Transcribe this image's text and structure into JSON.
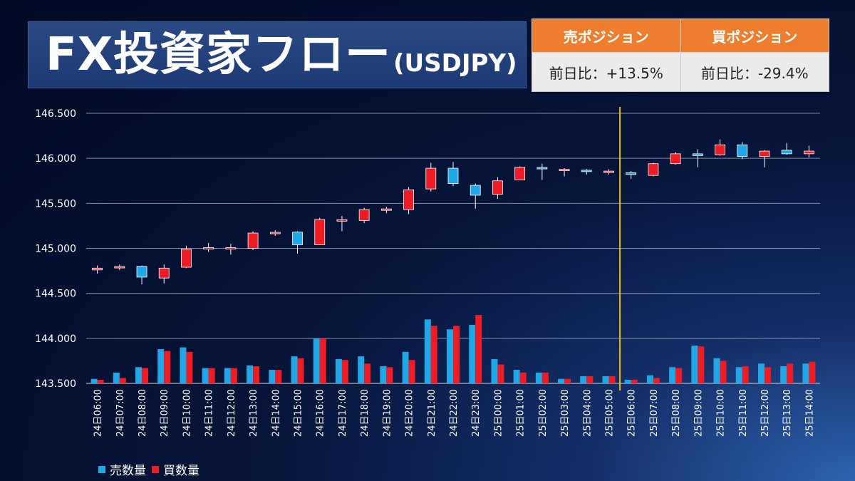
{
  "header": {
    "title": "FX投資家フロー",
    "pair": "(USDJPY)"
  },
  "positions": {
    "sell_label": "売ポジション",
    "buy_label": "買ポジション",
    "sell_change": "前日比：+13.5%",
    "buy_change": "前日比：-29.4%"
  },
  "legend": {
    "sell_volume": "売数量",
    "buy_volume": "買数量"
  },
  "colors": {
    "sell": "#1fa7e8",
    "buy": "#ee1c25",
    "header_orange": "#ee7d2e",
    "marker_line": "#f5b800"
  },
  "chart_data": {
    "type": "candlestick+bar",
    "title": "",
    "xlabel": "",
    "ylabel": "",
    "ylim": [
      143.5,
      146.5
    ],
    "yticks": [
      "146.500",
      "146.000",
      "145.500",
      "145.000",
      "144.500",
      "144.000",
      "143.500"
    ],
    "ytick_values": [
      146.5,
      146.0,
      145.5,
      145.0,
      144.5,
      144.0,
      143.5
    ],
    "grid": true,
    "legend_position": "bottom-left",
    "vertical_marker_between": [
      "25日05:00",
      "25日06:00"
    ],
    "categories": [
      "24日06:00",
      "24日07:00",
      "24日08:00",
      "24日09:00",
      "24日10:00",
      "24日11:00",
      "24日12:00",
      "24日13:00",
      "24日14:00",
      "24日15:00",
      "24日16:00",
      "24日17:00",
      "24日18:00",
      "24日19:00",
      "24日20:00",
      "24日21:00",
      "24日22:00",
      "24日23:00",
      "25日00:00",
      "25日01:00",
      "25日02:00",
      "25日03:00",
      "25日04:00",
      "25日05:00",
      "25日06:00",
      "25日07:00",
      "25日08:00",
      "25日09:00",
      "25日10:00",
      "25日11:00",
      "25日12:00",
      "25日13:00",
      "25日14:00"
    ],
    "candles": [
      {
        "open": 144.76,
        "close": 144.78,
        "high": 144.81,
        "low": 144.72
      },
      {
        "open": 144.79,
        "close": 144.79,
        "high": 144.82,
        "low": 144.76
      },
      {
        "open": 144.8,
        "close": 144.68,
        "high": 144.81,
        "low": 144.6
      },
      {
        "open": 144.67,
        "close": 144.78,
        "high": 144.82,
        "low": 144.61
      },
      {
        "open": 144.79,
        "close": 144.99,
        "high": 145.03,
        "low": 144.78
      },
      {
        "open": 144.99,
        "close": 145.0,
        "high": 145.06,
        "low": 144.96
      },
      {
        "open": 144.99,
        "close": 145.0,
        "high": 145.05,
        "low": 144.93
      },
      {
        "open": 145.0,
        "close": 145.17,
        "high": 145.19,
        "low": 144.98
      },
      {
        "open": 145.17,
        "close": 145.17,
        "high": 145.2,
        "low": 145.14
      },
      {
        "open": 145.18,
        "close": 145.04,
        "high": 145.19,
        "low": 144.94
      },
      {
        "open": 145.04,
        "close": 145.32,
        "high": 145.34,
        "low": 145.04
      },
      {
        "open": 145.3,
        "close": 145.31,
        "high": 145.36,
        "low": 145.19
      },
      {
        "open": 145.31,
        "close": 145.43,
        "high": 145.45,
        "low": 145.28
      },
      {
        "open": 145.42,
        "close": 145.43,
        "high": 145.46,
        "low": 145.39
      },
      {
        "open": 145.43,
        "close": 145.65,
        "high": 145.68,
        "low": 145.38
      },
      {
        "open": 145.66,
        "close": 145.89,
        "high": 145.95,
        "low": 145.63
      },
      {
        "open": 145.89,
        "close": 145.72,
        "high": 145.96,
        "low": 145.69
      },
      {
        "open": 145.7,
        "close": 145.59,
        "high": 145.72,
        "low": 145.44
      },
      {
        "open": 145.6,
        "close": 145.75,
        "high": 145.79,
        "low": 145.55
      },
      {
        "open": 145.76,
        "close": 145.9,
        "high": 145.91,
        "low": 145.76
      },
      {
        "open": 145.89,
        "close": 145.88,
        "high": 145.94,
        "low": 145.76
      },
      {
        "open": 145.87,
        "close": 145.87,
        "high": 145.89,
        "low": 145.8
      },
      {
        "open": 145.86,
        "close": 145.85,
        "high": 145.88,
        "low": 145.82
      },
      {
        "open": 145.85,
        "close": 145.85,
        "high": 145.88,
        "low": 145.82
      },
      {
        "open": 145.84,
        "close": 145.82,
        "high": 145.86,
        "low": 145.77
      },
      {
        "open": 145.81,
        "close": 145.94,
        "high": 145.95,
        "low": 145.8
      },
      {
        "open": 145.94,
        "close": 146.05,
        "high": 146.07,
        "low": 145.93
      },
      {
        "open": 146.05,
        "close": 146.03,
        "high": 146.1,
        "low": 145.9
      },
      {
        "open": 146.04,
        "close": 146.15,
        "high": 146.21,
        "low": 146.03
      },
      {
        "open": 146.15,
        "close": 146.02,
        "high": 146.18,
        "low": 145.99
      },
      {
        "open": 146.02,
        "close": 146.08,
        "high": 146.09,
        "low": 145.9
      },
      {
        "open": 146.09,
        "close": 146.05,
        "high": 146.17,
        "low": 146.04
      },
      {
        "open": 146.05,
        "close": 146.08,
        "high": 146.14,
        "low": 146.01
      }
    ],
    "series": [
      {
        "name": "売数量",
        "values": [
          143.55,
          143.62,
          143.68,
          143.88,
          143.9,
          143.67,
          143.67,
          143.7,
          143.65,
          143.8,
          144.0,
          143.77,
          143.8,
          143.69,
          143.85,
          144.21,
          144.1,
          144.15,
          143.77,
          143.65,
          143.62,
          143.55,
          143.58,
          143.58,
          143.54,
          143.59,
          143.68,
          143.92,
          143.78,
          143.68,
          143.72,
          143.69,
          143.72
        ]
      },
      {
        "name": "買数量",
        "values": [
          143.54,
          143.56,
          143.67,
          143.86,
          143.85,
          143.67,
          143.67,
          143.69,
          143.65,
          143.78,
          144.0,
          143.76,
          143.72,
          143.68,
          143.76,
          144.14,
          144.14,
          144.26,
          143.71,
          143.62,
          143.62,
          143.55,
          143.58,
          143.58,
          143.54,
          143.56,
          143.67,
          143.91,
          143.75,
          143.69,
          143.68,
          143.72,
          143.74
        ]
      }
    ]
  }
}
